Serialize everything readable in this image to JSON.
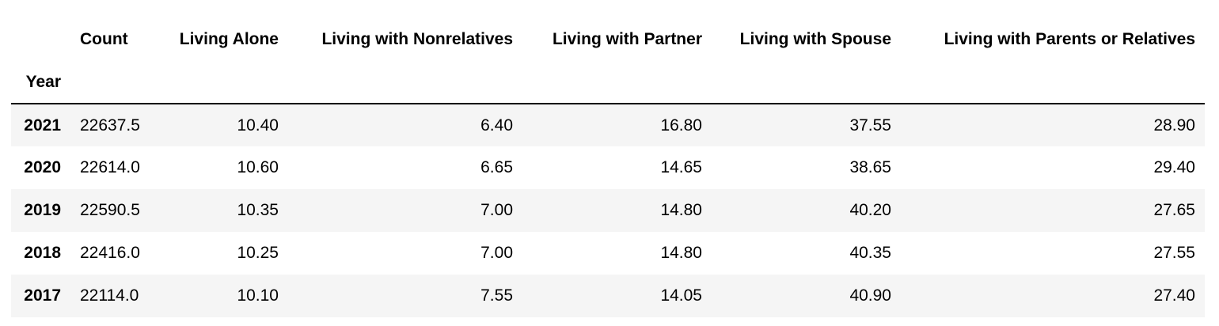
{
  "table": {
    "index_name": "Year",
    "columns": [
      "Count",
      "Living Alone",
      "Living with Nonrelatives",
      "Living with Partner",
      "Living with Spouse",
      "Living with Parents or Relatives"
    ],
    "rows": [
      {
        "index": "2021",
        "cells": [
          "22637.5",
          "10.40",
          "6.40",
          "16.80",
          "37.55",
          "28.90"
        ]
      },
      {
        "index": "2020",
        "cells": [
          "22614.0",
          "10.60",
          "6.65",
          "14.65",
          "38.65",
          "29.40"
        ]
      },
      {
        "index": "2019",
        "cells": [
          "22590.5",
          "10.35",
          "7.00",
          "14.80",
          "40.20",
          "27.65"
        ]
      },
      {
        "index": "2018",
        "cells": [
          "22416.0",
          "10.25",
          "7.00",
          "14.80",
          "40.35",
          "27.55"
        ]
      },
      {
        "index": "2017",
        "cells": [
          "22114.0",
          "10.10",
          "7.55",
          "14.05",
          "40.90",
          "27.40"
        ]
      }
    ]
  }
}
